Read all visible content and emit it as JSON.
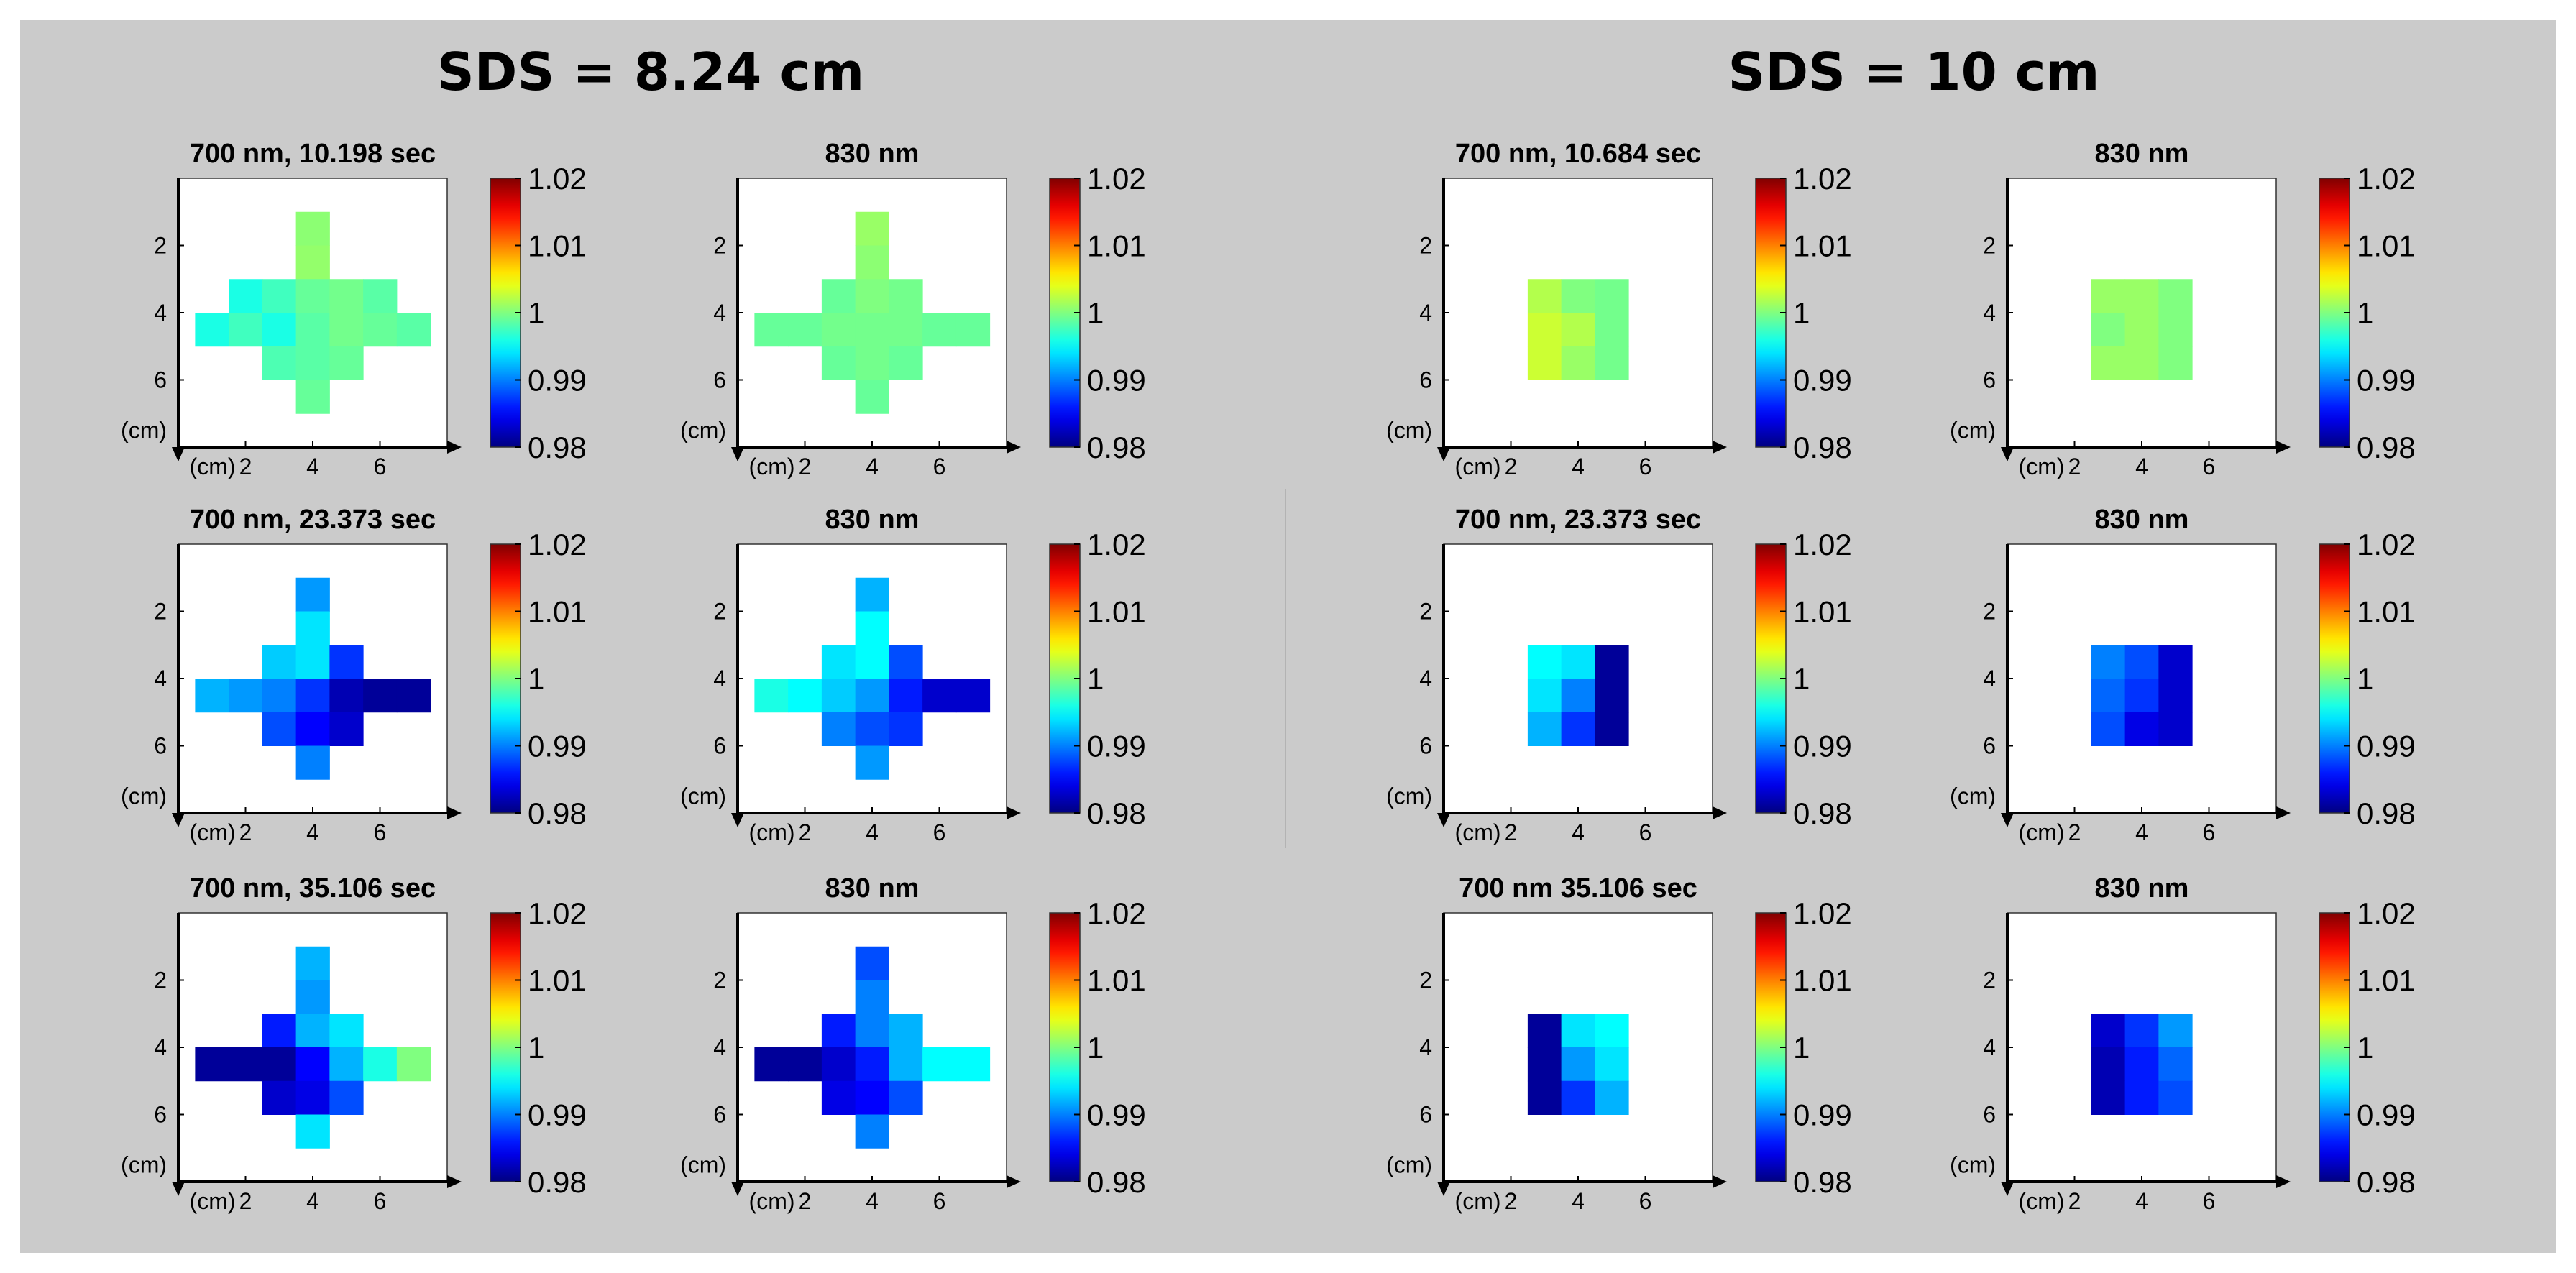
{
  "figure": {
    "left_title": "SDS = 8.24 cm",
    "right_title": "SDS = 10 cm",
    "colors": {
      "background": "#cbcbcb",
      "plot_bg": "#ffffff"
    }
  },
  "chart_data": [
    {
      "type": "heatmap",
      "section": "SDS = 8.24 cm",
      "title": "700 nm,  10.198 sec",
      "x_ticks": [
        "2",
        "4",
        "6"
      ],
      "y_ticks": [
        "2",
        "4",
        "6"
      ],
      "x_unit": "(cm)",
      "y_unit": "(cm)",
      "colorbar": {
        "range": [
          0.98,
          1.02
        ],
        "ticks": [
          "1.02",
          "1.01",
          "1",
          "0.99",
          "0.98"
        ]
      },
      "cells": [
        {
          "x": 4,
          "y": 1.5,
          "v": 1.0005
        },
        {
          "x": 4,
          "y": 2.5,
          "v": 1.0008
        },
        {
          "x": 2,
          "y": 3.5,
          "v": 0.996
        },
        {
          "x": 3,
          "y": 3.5,
          "v": 0.9975
        },
        {
          "x": 4,
          "y": 3.5,
          "v": 0.999
        },
        {
          "x": 5,
          "y": 3.5,
          "v": 0.9995
        },
        {
          "x": 6,
          "y": 3.5,
          "v": 0.9985
        },
        {
          "x": 1,
          "y": 4.5,
          "v": 0.996
        },
        {
          "x": 2,
          "y": 4.5,
          "v": 0.9975
        },
        {
          "x": 3,
          "y": 4.5,
          "v": 0.996
        },
        {
          "x": 4,
          "y": 4.5,
          "v": 0.9985
        },
        {
          "x": 5,
          "y": 4.5,
          "v": 0.9995
        },
        {
          "x": 6,
          "y": 4.5,
          "v": 0.999
        },
        {
          "x": 7,
          "y": 4.5,
          "v": 0.9985
        },
        {
          "x": 3,
          "y": 5.5,
          "v": 0.998
        },
        {
          "x": 4,
          "y": 5.5,
          "v": 0.9985
        },
        {
          "x": 5,
          "y": 5.5,
          "v": 0.999
        },
        {
          "x": 4,
          "y": 6.5,
          "v": 0.999
        }
      ]
    },
    {
      "type": "heatmap",
      "section": "SDS = 8.24 cm",
      "title": "830 nm",
      "x_ticks": [
        "2",
        "4",
        "6"
      ],
      "y_ticks": [
        "2",
        "4",
        "6"
      ],
      "x_unit": "(cm)",
      "y_unit": "(cm)",
      "colorbar": {
        "range": [
          0.98,
          1.02
        ],
        "ticks": [
          "1.02",
          "1.01",
          "1",
          "0.99",
          "0.98"
        ]
      },
      "cells": [
        {
          "x": 4,
          "y": 1.5,
          "v": 1.001
        },
        {
          "x": 4,
          "y": 2.5,
          "v": 1.0005
        },
        {
          "x": 3,
          "y": 3.5,
          "v": 0.999
        },
        {
          "x": 4,
          "y": 3.5,
          "v": 1.0
        },
        {
          "x": 5,
          "y": 3.5,
          "v": 0.9995
        },
        {
          "x": 1,
          "y": 4.5,
          "v": 0.999
        },
        {
          "x": 2,
          "y": 4.5,
          "v": 0.999
        },
        {
          "x": 3,
          "y": 4.5,
          "v": 0.9995
        },
        {
          "x": 4,
          "y": 4.5,
          "v": 0.9995
        },
        {
          "x": 5,
          "y": 4.5,
          "v": 0.9995
        },
        {
          "x": 6,
          "y": 4.5,
          "v": 0.999
        },
        {
          "x": 7,
          "y": 4.5,
          "v": 0.999
        },
        {
          "x": 3,
          "y": 5.5,
          "v": 0.999
        },
        {
          "x": 4,
          "y": 5.5,
          "v": 0.9995
        },
        {
          "x": 5,
          "y": 5.5,
          "v": 0.999
        },
        {
          "x": 4,
          "y": 6.5,
          "v": 0.999
        }
      ]
    },
    {
      "type": "heatmap",
      "section": "SDS = 8.24 cm",
      "title": "700 nm,  23.373 sec",
      "x_ticks": [
        "2",
        "4",
        "6"
      ],
      "y_ticks": [
        "2",
        "4",
        "6"
      ],
      "x_unit": "(cm)",
      "y_unit": "(cm)",
      "colorbar": {
        "range": [
          0.98,
          1.02
        ],
        "ticks": [
          "1.02",
          "1.01",
          "1",
          "0.99",
          "0.98"
        ]
      },
      "cells": [
        {
          "x": 4,
          "y": 1.5,
          "v": 0.991
        },
        {
          "x": 4,
          "y": 2.5,
          "v": 0.994
        },
        {
          "x": 3,
          "y": 3.5,
          "v": 0.993
        },
        {
          "x": 4,
          "y": 3.5,
          "v": 0.994
        },
        {
          "x": 5,
          "y": 3.5,
          "v": 0.987
        },
        {
          "x": 1,
          "y": 4.5,
          "v": 0.992
        },
        {
          "x": 2,
          "y": 4.5,
          "v": 0.991
        },
        {
          "x": 3,
          "y": 4.5,
          "v": 0.99
        },
        {
          "x": 4,
          "y": 4.5,
          "v": 0.987
        },
        {
          "x": 5,
          "y": 4.5,
          "v": 0.982
        },
        {
          "x": 6,
          "y": 4.5,
          "v": 0.981
        },
        {
          "x": 7,
          "y": 4.5,
          "v": 0.981
        },
        {
          "x": 3,
          "y": 5.5,
          "v": 0.988
        },
        {
          "x": 4,
          "y": 5.5,
          "v": 0.985
        },
        {
          "x": 5,
          "y": 5.5,
          "v": 0.983
        },
        {
          "x": 4,
          "y": 6.5,
          "v": 0.99
        }
      ]
    },
    {
      "type": "heatmap",
      "section": "SDS = 8.24 cm",
      "title": "830 nm",
      "x_ticks": [
        "2",
        "4",
        "6"
      ],
      "y_ticks": [
        "2",
        "4",
        "6"
      ],
      "x_unit": "(cm)",
      "y_unit": "(cm)",
      "colorbar": {
        "range": [
          0.98,
          1.02
        ],
        "ticks": [
          "1.02",
          "1.01",
          "1",
          "0.99",
          "0.98"
        ]
      },
      "cells": [
        {
          "x": 4,
          "y": 1.5,
          "v": 0.992
        },
        {
          "x": 4,
          "y": 2.5,
          "v": 0.995
        },
        {
          "x": 3,
          "y": 3.5,
          "v": 0.994
        },
        {
          "x": 4,
          "y": 3.5,
          "v": 0.995
        },
        {
          "x": 5,
          "y": 3.5,
          "v": 0.988
        },
        {
          "x": 1,
          "y": 4.5,
          "v": 0.996
        },
        {
          "x": 2,
          "y": 4.5,
          "v": 0.995
        },
        {
          "x": 3,
          "y": 4.5,
          "v": 0.993
        },
        {
          "x": 4,
          "y": 4.5,
          "v": 0.991
        },
        {
          "x": 5,
          "y": 4.5,
          "v": 0.986
        },
        {
          "x": 6,
          "y": 4.5,
          "v": 0.983
        },
        {
          "x": 7,
          "y": 4.5,
          "v": 0.983
        },
        {
          "x": 3,
          "y": 5.5,
          "v": 0.99
        },
        {
          "x": 4,
          "y": 5.5,
          "v": 0.988
        },
        {
          "x": 5,
          "y": 5.5,
          "v": 0.987
        },
        {
          "x": 4,
          "y": 6.5,
          "v": 0.991
        }
      ]
    },
    {
      "type": "heatmap",
      "section": "SDS = 8.24 cm",
      "title": "700 nm,  35.106 sec",
      "x_ticks": [
        "2",
        "4",
        "6"
      ],
      "y_ticks": [
        "2",
        "4",
        "6"
      ],
      "x_unit": "(cm)",
      "y_unit": "(cm)",
      "colorbar": {
        "range": [
          0.98,
          1.02
        ],
        "ticks": [
          "1.02",
          "1.01",
          "1",
          "0.99",
          "0.98"
        ]
      },
      "cells": [
        {
          "x": 4,
          "y": 1.5,
          "v": 0.992
        },
        {
          "x": 4,
          "y": 2.5,
          "v": 0.991
        },
        {
          "x": 3,
          "y": 3.5,
          "v": 0.986
        },
        {
          "x": 4,
          "y": 3.5,
          "v": 0.992
        },
        {
          "x": 5,
          "y": 3.5,
          "v": 0.994
        },
        {
          "x": 1,
          "y": 4.5,
          "v": 0.981
        },
        {
          "x": 2,
          "y": 4.5,
          "v": 0.981
        },
        {
          "x": 3,
          "y": 4.5,
          "v": 0.981
        },
        {
          "x": 4,
          "y": 4.5,
          "v": 0.985
        },
        {
          "x": 5,
          "y": 4.5,
          "v": 0.992
        },
        {
          "x": 6,
          "y": 4.5,
          "v": 0.996
        },
        {
          "x": 7,
          "y": 4.5,
          "v": 1.0
        },
        {
          "x": 3,
          "y": 5.5,
          "v": 0.983
        },
        {
          "x": 4,
          "y": 5.5,
          "v": 0.984
        },
        {
          "x": 5,
          "y": 5.5,
          "v": 0.988
        },
        {
          "x": 4,
          "y": 6.5,
          "v": 0.994
        }
      ]
    },
    {
      "type": "heatmap",
      "section": "SDS = 8.24 cm",
      "title": "830 nm",
      "x_ticks": [
        "2",
        "4",
        "6"
      ],
      "y_ticks": [
        "2",
        "4",
        "6"
      ],
      "x_unit": "(cm)",
      "y_unit": "(cm)",
      "colorbar": {
        "range": [
          0.98,
          1.02
        ],
        "ticks": [
          "1.02",
          "1.01",
          "1",
          "0.99",
          "0.98"
        ]
      },
      "cells": [
        {
          "x": 4,
          "y": 1.5,
          "v": 0.988
        },
        {
          "x": 4,
          "y": 2.5,
          "v": 0.99
        },
        {
          "x": 3,
          "y": 3.5,
          "v": 0.986
        },
        {
          "x": 4,
          "y": 3.5,
          "v": 0.99
        },
        {
          "x": 5,
          "y": 3.5,
          "v": 0.992
        },
        {
          "x": 1,
          "y": 4.5,
          "v": 0.981
        },
        {
          "x": 2,
          "y": 4.5,
          "v": 0.981
        },
        {
          "x": 3,
          "y": 4.5,
          "v": 0.983
        },
        {
          "x": 4,
          "y": 4.5,
          "v": 0.986
        },
        {
          "x": 5,
          "y": 4.5,
          "v": 0.992
        },
        {
          "x": 6,
          "y": 4.5,
          "v": 0.995
        },
        {
          "x": 7,
          "y": 4.5,
          "v": 0.995
        },
        {
          "x": 3,
          "y": 5.5,
          "v": 0.984
        },
        {
          "x": 4,
          "y": 5.5,
          "v": 0.985
        },
        {
          "x": 5,
          "y": 5.5,
          "v": 0.988
        },
        {
          "x": 4,
          "y": 6.5,
          "v": 0.99
        }
      ]
    },
    {
      "type": "heatmap",
      "section": "SDS = 10 cm",
      "title": "700 nm,  10.684 sec",
      "x_ticks": [
        "2",
        "4",
        "6"
      ],
      "y_ticks": [
        "2",
        "4",
        "6"
      ],
      "x_unit": "(cm)",
      "y_unit": "(cm)",
      "colorbar": {
        "range": [
          0.98,
          1.02
        ],
        "ticks": [
          "1.02",
          "1.01",
          "1",
          "0.99",
          "0.98"
        ]
      },
      "cells": [
        {
          "x": 3,
          "y": 3.5,
          "v": 1.002
        },
        {
          "x": 4,
          "y": 3.5,
          "v": 1.0
        },
        {
          "x": 5,
          "y": 3.5,
          "v": 0.9995
        },
        {
          "x": 3,
          "y": 4.5,
          "v": 1.003
        },
        {
          "x": 4,
          "y": 4.5,
          "v": 1.002
        },
        {
          "x": 5,
          "y": 4.5,
          "v": 0.9995
        },
        {
          "x": 3,
          "y": 5.5,
          "v": 1.003
        },
        {
          "x": 4,
          "y": 5.5,
          "v": 1.001
        },
        {
          "x": 5,
          "y": 5.5,
          "v": 0.9995
        }
      ]
    },
    {
      "type": "heatmap",
      "section": "SDS = 10 cm",
      "title": "830 nm",
      "x_ticks": [
        "2",
        "4",
        "6"
      ],
      "y_ticks": [
        "2",
        "4",
        "6"
      ],
      "x_unit": "(cm)",
      "y_unit": "(cm)",
      "colorbar": {
        "range": [
          0.98,
          1.02
        ],
        "ticks": [
          "1.02",
          "1.01",
          "1",
          "0.99",
          "0.98"
        ]
      },
      "cells": [
        {
          "x": 3,
          "y": 3.5,
          "v": 1.001
        },
        {
          "x": 4,
          "y": 3.5,
          "v": 1.001
        },
        {
          "x": 5,
          "y": 3.5,
          "v": 1.0
        },
        {
          "x": 3,
          "y": 4.5,
          "v": 1.0
        },
        {
          "x": 4,
          "y": 4.5,
          "v": 1.001
        },
        {
          "x": 5,
          "y": 4.5,
          "v": 1.0
        },
        {
          "x": 3,
          "y": 5.5,
          "v": 1.001
        },
        {
          "x": 4,
          "y": 5.5,
          "v": 1.001
        },
        {
          "x": 5,
          "y": 5.5,
          "v": 1.0
        }
      ]
    },
    {
      "type": "heatmap",
      "section": "SDS = 10 cm",
      "title": "700 nm,  23.373 sec",
      "x_ticks": [
        "2",
        "4",
        "6"
      ],
      "y_ticks": [
        "2",
        "4",
        "6"
      ],
      "x_unit": "(cm)",
      "y_unit": "(cm)",
      "colorbar": {
        "range": [
          0.98,
          1.02
        ],
        "ticks": [
          "1.02",
          "1.01",
          "1",
          "0.99",
          "0.98"
        ]
      },
      "cells": [
        {
          "x": 3,
          "y": 3.5,
          "v": 0.995
        },
        {
          "x": 4,
          "y": 3.5,
          "v": 0.994
        },
        {
          "x": 5,
          "y": 3.5,
          "v": 0.981
        },
        {
          "x": 3,
          "y": 4.5,
          "v": 0.994
        },
        {
          "x": 4,
          "y": 4.5,
          "v": 0.99
        },
        {
          "x": 5,
          "y": 4.5,
          "v": 0.981
        },
        {
          "x": 3,
          "y": 5.5,
          "v": 0.992
        },
        {
          "x": 4,
          "y": 5.5,
          "v": 0.987
        },
        {
          "x": 5,
          "y": 5.5,
          "v": 0.981
        }
      ]
    },
    {
      "type": "heatmap",
      "section": "SDS = 10 cm",
      "title": "830 nm",
      "x_ticks": [
        "2",
        "4",
        "6"
      ],
      "y_ticks": [
        "2",
        "4",
        "6"
      ],
      "x_unit": "(cm)",
      "y_unit": "(cm)",
      "colorbar": {
        "range": [
          0.98,
          1.02
        ],
        "ticks": [
          "1.02",
          "1.01",
          "1",
          "0.99",
          "0.98"
        ]
      },
      "cells": [
        {
          "x": 3,
          "y": 3.5,
          "v": 0.99
        },
        {
          "x": 4,
          "y": 3.5,
          "v": 0.988
        },
        {
          "x": 5,
          "y": 3.5,
          "v": 0.983
        },
        {
          "x": 3,
          "y": 4.5,
          "v": 0.989
        },
        {
          "x": 4,
          "y": 4.5,
          "v": 0.987
        },
        {
          "x": 5,
          "y": 4.5,
          "v": 0.983
        },
        {
          "x": 3,
          "y": 5.5,
          "v": 0.988
        },
        {
          "x": 4,
          "y": 5.5,
          "v": 0.984
        },
        {
          "x": 5,
          "y": 5.5,
          "v": 0.983
        }
      ]
    },
    {
      "type": "heatmap",
      "section": "SDS = 10 cm",
      "title": "700 nm 35.106 sec",
      "x_ticks": [
        "2",
        "4",
        "6"
      ],
      "y_ticks": [
        "2",
        "4",
        "6"
      ],
      "x_unit": "(cm)",
      "y_unit": "(cm)",
      "colorbar": {
        "range": [
          0.98,
          1.02
        ],
        "ticks": [
          "1.02",
          "1.01",
          "1",
          "0.99",
          "0.98"
        ]
      },
      "cells": [
        {
          "x": 3,
          "y": 3.5,
          "v": 0.981
        },
        {
          "x": 4,
          "y": 3.5,
          "v": 0.994
        },
        {
          "x": 5,
          "y": 3.5,
          "v": 0.995
        },
        {
          "x": 3,
          "y": 4.5,
          "v": 0.981
        },
        {
          "x": 4,
          "y": 4.5,
          "v": 0.991
        },
        {
          "x": 5,
          "y": 4.5,
          "v": 0.994
        },
        {
          "x": 3,
          "y": 5.5,
          "v": 0.981
        },
        {
          "x": 4,
          "y": 5.5,
          "v": 0.987
        },
        {
          "x": 5,
          "y": 5.5,
          "v": 0.992
        }
      ]
    },
    {
      "type": "heatmap",
      "section": "SDS = 10 cm",
      "title": "830 nm",
      "x_ticks": [
        "2",
        "4",
        "6"
      ],
      "y_ticks": [
        "2",
        "4",
        "6"
      ],
      "x_unit": "(cm)",
      "y_unit": "(cm)",
      "colorbar": {
        "range": [
          0.98,
          1.02
        ],
        "ticks": [
          "1.02",
          "1.01",
          "1",
          "0.99",
          "0.98"
        ]
      },
      "cells": [
        {
          "x": 3,
          "y": 3.5,
          "v": 0.983
        },
        {
          "x": 4,
          "y": 3.5,
          "v": 0.987
        },
        {
          "x": 5,
          "y": 3.5,
          "v": 0.991
        },
        {
          "x": 3,
          "y": 4.5,
          "v": 0.982
        },
        {
          "x": 4,
          "y": 4.5,
          "v": 0.986
        },
        {
          "x": 5,
          "y": 4.5,
          "v": 0.989
        },
        {
          "x": 3,
          "y": 5.5,
          "v": 0.982
        },
        {
          "x": 4,
          "y": 5.5,
          "v": 0.986
        },
        {
          "x": 5,
          "y": 5.5,
          "v": 0.988
        }
      ]
    }
  ]
}
